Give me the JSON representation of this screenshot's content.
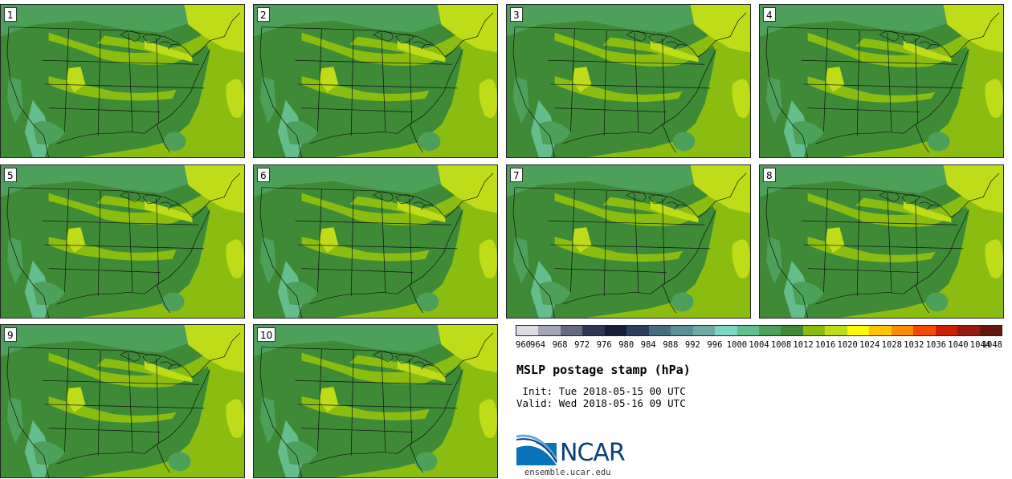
{
  "title": "MSLP postage stamp (hPa)",
  "init_label": " Init:",
  "init_value": "Tue 2018-05-15 00 UTC",
  "valid_label": "Valid:",
  "valid_value": "Wed 2018-05-16 09 UTC",
  "logo_text": "NCAR",
  "url": "ensemble.ucar.edu",
  "members": [
    "1",
    "2",
    "3",
    "4",
    "5",
    "6",
    "7",
    "8",
    "9",
    "10"
  ],
  "colorbar": {
    "ticks": [
      "960",
      "964",
      "968",
      "972",
      "976",
      "980",
      "984",
      "988",
      "992",
      "996",
      "1000",
      "1004",
      "1008",
      "1012",
      "1016",
      "1020",
      "1024",
      "1028",
      "1032",
      "1036",
      "1040",
      "1044",
      "1048"
    ],
    "colors": [
      "#dcdde4",
      "#a4a6b8",
      "#656982",
      "#2d3654",
      "#141c36",
      "#2b3f5c",
      "#456d80",
      "#5a8f96",
      "#6eaaa6",
      "#7ed6c2",
      "#64bd8c",
      "#4ca05a",
      "#3e8a36",
      "#8bbd10",
      "#bfdc18",
      "#fffa00",
      "#ffc400",
      "#ff8c00",
      "#f24a00",
      "#c82000",
      "#961a10",
      "#64180c"
    ]
  },
  "map_colors": {
    "ocean": "#8bbd10",
    "land_low": "#3e8a36",
    "land_mid": "#4ca05a",
    "high_1": "#8bbd10",
    "high_2": "#bfdc18",
    "mountains": "#64bd8c"
  }
}
